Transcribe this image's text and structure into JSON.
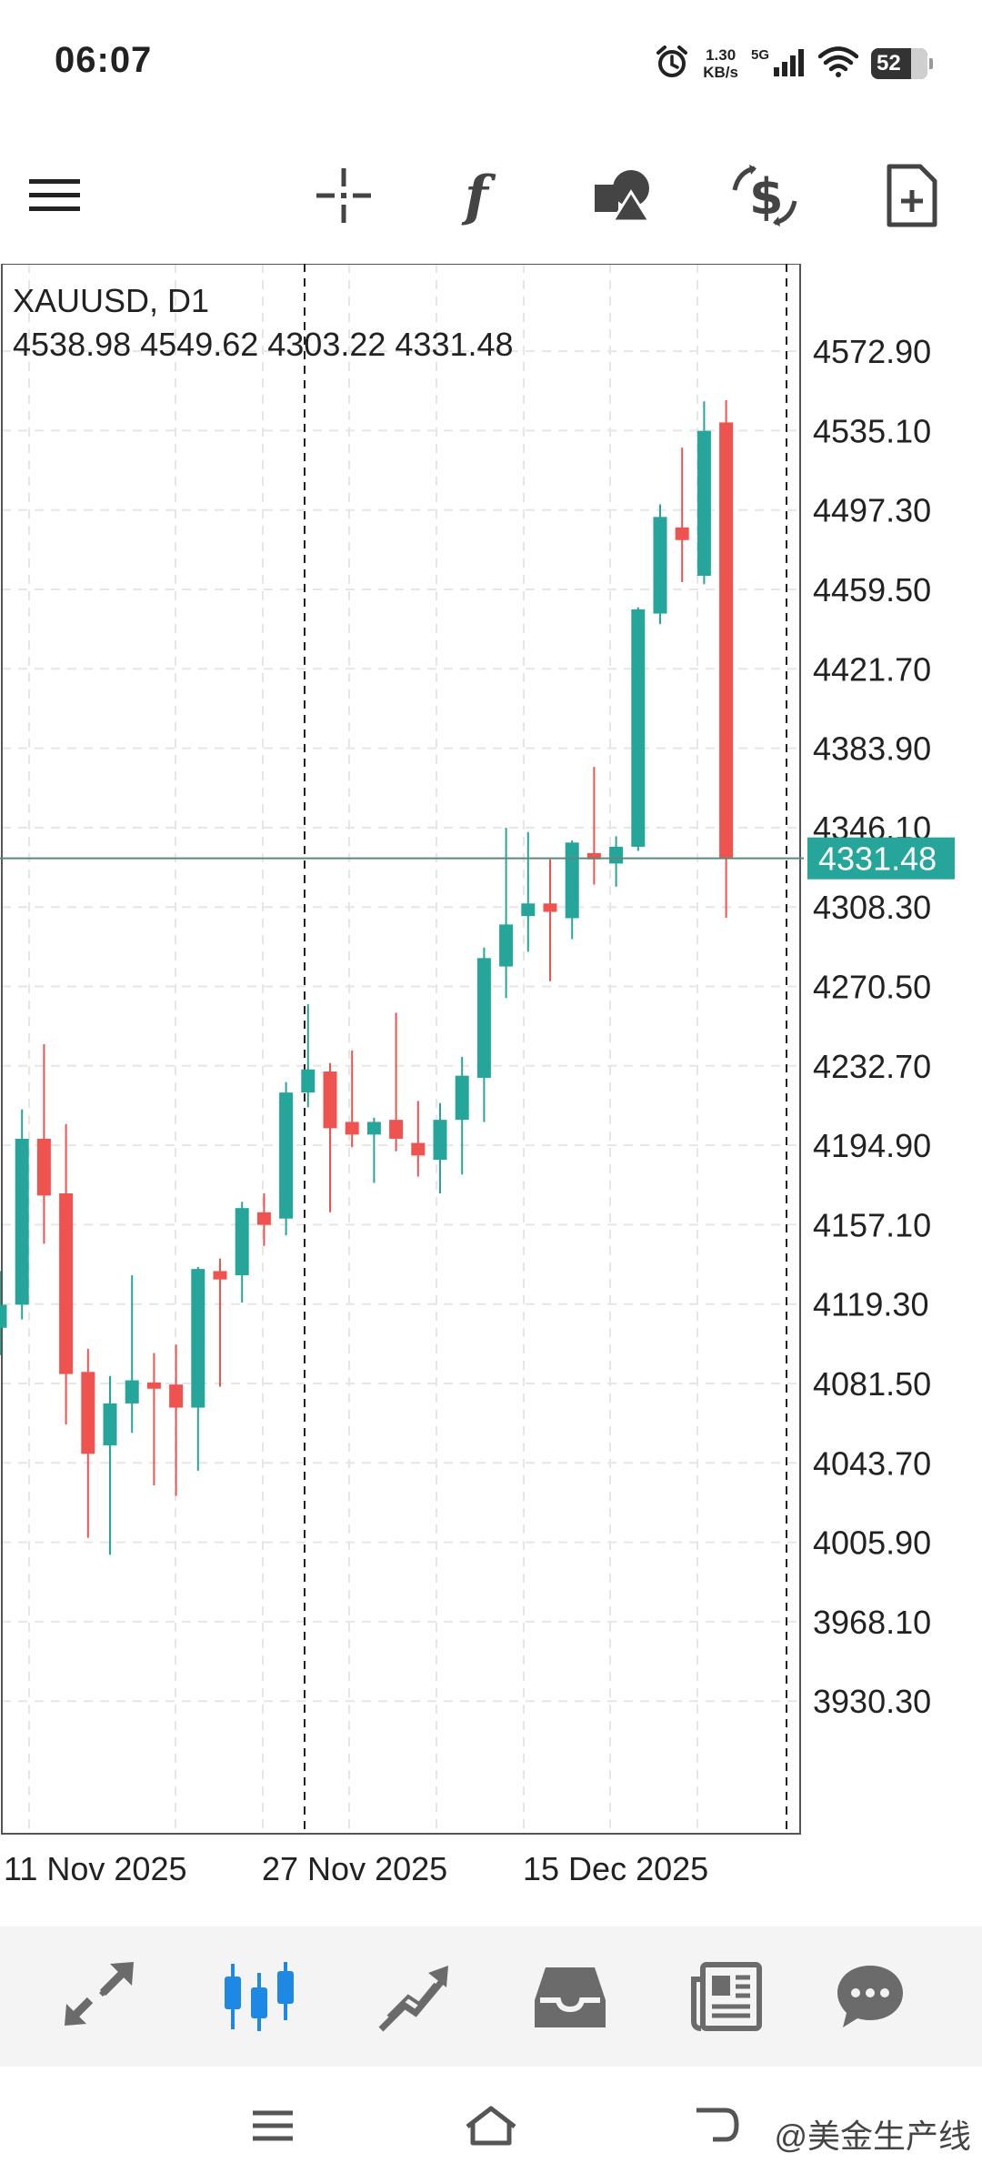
{
  "status_bar": {
    "time": "06:07",
    "net_speed_value": "1.30",
    "net_speed_unit": "KB/s",
    "network_type": "5G",
    "battery": "52",
    "icons": [
      "alarm-icon",
      "signal-icon",
      "wifi-icon",
      "battery-icon"
    ]
  },
  "toolbar": {
    "items": [
      {
        "name": "menu",
        "icon": "menu-icon"
      },
      {
        "name": "crosshair",
        "icon": "crosshair-icon"
      },
      {
        "name": "indicators",
        "icon": "function-icon"
      },
      {
        "name": "objects",
        "icon": "shapes-icon"
      },
      {
        "name": "trade",
        "icon": "trade-dollar-icon"
      },
      {
        "name": "new-order",
        "icon": "new-document-icon"
      }
    ]
  },
  "chart_header": {
    "symbol": "XAUUSD, D1",
    "ohlc": "4538.98 4549.62 4303.22 4331.48"
  },
  "colors": {
    "bull": "#26a69a",
    "bear": "#ef5350",
    "price_line": "#5b8a7a",
    "price_label_bg": "#26a69a",
    "grid": "#e6e6e6",
    "nav_active": "#1e88e5",
    "nav_inactive": "#6b6b6b"
  },
  "chart_data": {
    "type": "candlestick",
    "symbol": "XAUUSD",
    "timeframe": "D1",
    "ylim": [
      3892.5,
      4592.0
    ],
    "y_ticks": [
      "4572.90",
      "4535.10",
      "4497.30",
      "4459.50",
      "4421.70",
      "4383.90",
      "4346.10",
      "4308.30",
      "4270.50",
      "4232.70",
      "4194.90",
      "4157.10",
      "4119.30",
      "4081.50",
      "4043.70",
      "4005.90",
      "3968.10",
      "3930.30"
    ],
    "x_labels": [
      "11 Nov 2025",
      "27 Nov 2025",
      "15 Dec 2025"
    ],
    "last_price": "4331.48",
    "candles": [
      {
        "o": 4108,
        "h": 4135,
        "l": 4095,
        "c": 4119
      },
      {
        "o": 4119,
        "h": 4212,
        "l": 4112,
        "c": 4198
      },
      {
        "o": 4198,
        "h": 4243,
        "l": 4148,
        "c": 4171
      },
      {
        "o": 4172,
        "h": 4205,
        "l": 4062,
        "c": 4086
      },
      {
        "o": 4087,
        "h": 4098,
        "l": 4008,
        "c": 4048
      },
      {
        "o": 4052,
        "h": 4085,
        "l": 4000,
        "c": 4072
      },
      {
        "o": 4072,
        "h": 4133,
        "l": 4058,
        "c": 4083
      },
      {
        "o": 4082,
        "h": 4096,
        "l": 4033,
        "c": 4079
      },
      {
        "o": 4081,
        "h": 4100,
        "l": 4028,
        "c": 4070
      },
      {
        "o": 4070,
        "h": 4137,
        "l": 4040,
        "c": 4136
      },
      {
        "o": 4135,
        "h": 4141,
        "l": 4080,
        "c": 4131
      },
      {
        "o": 4133,
        "h": 4168,
        "l": 4120,
        "c": 4165
      },
      {
        "o": 4163,
        "h": 4172,
        "l": 4147,
        "c": 4157
      },
      {
        "o": 4160,
        "h": 4225,
        "l": 4152,
        "c": 4220
      },
      {
        "o": 4220,
        "h": 4262,
        "l": 4213,
        "c": 4231
      },
      {
        "o": 4230,
        "h": 4234,
        "l": 4163,
        "c": 4203
      },
      {
        "o": 4206,
        "h": 4240,
        "l": 4194,
        "c": 4200
      },
      {
        "o": 4200,
        "h": 4208,
        "l": 4177,
        "c": 4206
      },
      {
        "o": 4207,
        "h": 4258,
        "l": 4192,
        "c": 4198
      },
      {
        "o": 4196,
        "h": 4216,
        "l": 4180,
        "c": 4190
      },
      {
        "o": 4188,
        "h": 4215,
        "l": 4172,
        "c": 4207
      },
      {
        "o": 4207,
        "h": 4237,
        "l": 4181,
        "c": 4228
      },
      {
        "o": 4227,
        "h": 4289,
        "l": 4206,
        "c": 4284
      },
      {
        "o": 4280,
        "h": 4346,
        "l": 4265,
        "c": 4300
      },
      {
        "o": 4304,
        "h": 4344,
        "l": 4287,
        "c": 4310
      },
      {
        "o": 4310,
        "h": 4331,
        "l": 4273,
        "c": 4306
      },
      {
        "o": 4303,
        "h": 4340,
        "l": 4293,
        "c": 4339
      },
      {
        "o": 4334,
        "h": 4375,
        "l": 4319,
        "c": 4331
      },
      {
        "o": 4329,
        "h": 4342,
        "l": 4318,
        "c": 4337
      },
      {
        "o": 4337,
        "h": 4451,
        "l": 4335,
        "c": 4450
      },
      {
        "o": 4448,
        "h": 4500,
        "l": 4443,
        "c": 4494
      },
      {
        "o": 4489,
        "h": 4527,
        "l": 4463,
        "c": 4483
      },
      {
        "o": 4466,
        "h": 4549,
        "l": 4462,
        "c": 4535
      },
      {
        "o": 4538.98,
        "h": 4549.62,
        "l": 4303.22,
        "c": 4331.48
      }
    ]
  },
  "bottom_nav": {
    "items": [
      {
        "name": "quotes",
        "icon": "quotes-arrows-icon",
        "active": false
      },
      {
        "name": "chart",
        "icon": "candlestick-chart-icon",
        "active": true
      },
      {
        "name": "trade",
        "icon": "trade-trend-icon",
        "active": false
      },
      {
        "name": "history",
        "icon": "inbox-icon",
        "active": false
      },
      {
        "name": "news",
        "icon": "newspaper-icon",
        "active": false
      },
      {
        "name": "messages",
        "icon": "chat-bubble-icon",
        "active": false
      }
    ]
  },
  "system_nav": {
    "icons": [
      "recent-apps-icon",
      "home-icon",
      "back-icon"
    ],
    "watermark": "@美金生产线"
  }
}
